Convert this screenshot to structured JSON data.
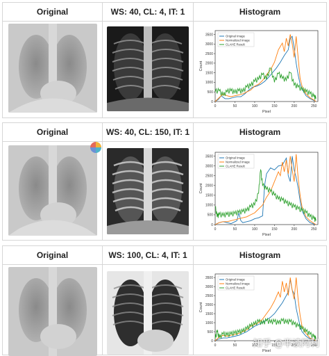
{
  "rows": [
    {
      "col_original": "Original",
      "col_result": "WS: 40, CL: 4, IT: 1",
      "col_hist": "Histogram",
      "chart_data": {
        "type": "line",
        "xlabel": "Pixel",
        "ylabel": "Count",
        "xlim": [
          0,
          260
        ],
        "ylim": [
          0,
          3700
        ],
        "xticks": [
          0,
          50,
          100,
          150,
          200,
          250
        ],
        "yticks": [
          0,
          500,
          1000,
          1500,
          2000,
          2500,
          3000,
          3500
        ],
        "legend_position": "top-left",
        "series": [
          {
            "name": "Original Image",
            "color": "#1f77b4",
            "x": [
              0,
              8,
              15,
              25,
              35,
              45,
              55,
              65,
              75,
              85,
              95,
              105,
              115,
              125,
              135,
              145,
              155,
              165,
              175,
              185,
              190,
              195,
              200,
              205,
              210,
              215,
              220,
              230,
              240,
              250,
              255
            ],
            "y": [
              0,
              100,
              300,
              150,
              150,
              200,
              250,
              250,
              400,
              600,
              750,
              800,
              900,
              1050,
              1250,
              1500,
              1750,
              2050,
              2400,
              2700,
              3300,
              3400,
              2800,
              2000,
              1400,
              900,
              650,
              300,
              150,
              50,
              0
            ]
          },
          {
            "name": "Normalized Image",
            "color": "#ff7f0e",
            "x": [
              0,
              10,
              20,
              30,
              40,
              50,
              60,
              70,
              80,
              90,
              100,
              110,
              120,
              130,
              140,
              150,
              160,
              170,
              175,
              180,
              185,
              190,
              195,
              200,
              205,
              210,
              215,
              220,
              230,
              240,
              250,
              255
            ],
            "y": [
              0,
              200,
              400,
              300,
              250,
              300,
              350,
              400,
              500,
              600,
              800,
              900,
              1100,
              1400,
              1650,
              2050,
              2700,
              3050,
              2600,
              3300,
              2900,
              3500,
              3000,
              2300,
              3400,
              2300,
              1200,
              800,
              400,
              200,
              80,
              0
            ]
          },
          {
            "name": "CLAHE Result",
            "color": "#2ca02c",
            "x": [
              0,
              10,
              20,
              30,
              40,
              50,
              60,
              70,
              80,
              90,
              100,
              110,
              120,
              130,
              140,
              150,
              160,
              170,
              180,
              190,
              200,
              210,
              220,
              230,
              240,
              250,
              255
            ],
            "y": [
              500,
              550,
              300,
              500,
              550,
              450,
              550,
              500,
              750,
              800,
              1050,
              1150,
              1400,
              1150,
              1750,
              1000,
              1450,
              1200,
              1100,
              1500,
              850,
              750,
              600,
              500,
              400,
              250,
              150
            ]
          }
        ]
      }
    },
    {
      "col_original": "Original",
      "col_result": "WS: 40, CL: 150, IT: 1",
      "col_hist": "Histogram",
      "chart_data": {
        "type": "line",
        "xlabel": "Pixel",
        "ylabel": "Count",
        "xlim": [
          0,
          260
        ],
        "ylim": [
          0,
          3700
        ],
        "xticks": [
          0,
          50,
          100,
          150,
          200,
          250
        ],
        "yticks": [
          0,
          500,
          1000,
          1500,
          2000,
          2500,
          3000,
          3500
        ],
        "legend_position": "top-left",
        "series": [
          {
            "name": "Original Image",
            "color": "#1f77b4",
            "x": [
              0,
              10,
              20,
              30,
              40,
              50,
              55,
              60,
              65,
              70,
              80,
              90,
              100,
              110,
              120,
              125,
              130,
              140,
              150,
              160,
              170,
              180,
              185,
              190,
              195,
              200,
              205,
              210,
              215,
              220,
              230,
              240,
              250,
              255
            ],
            "y": [
              0,
              100,
              150,
              100,
              50,
              150,
              200,
              600,
              200,
              100,
              150,
              200,
              300,
              350,
              450,
              2000,
              2600,
              2900,
              2800,
              3000,
              3050,
              3400,
              2500,
              2200,
              3500,
              2800,
              2400,
              1900,
              1200,
              700,
              300,
              100,
              30,
              0
            ]
          },
          {
            "name": "Normalized Image",
            "color": "#ff7f0e",
            "x": [
              0,
              10,
              20,
              30,
              40,
              50,
              60,
              70,
              80,
              90,
              100,
              110,
              120,
              130,
              140,
              150,
              160,
              165,
              170,
              175,
              180,
              185,
              190,
              195,
              200,
              205,
              210,
              215,
              220,
              230,
              240,
              250,
              255
            ],
            "y": [
              0,
              100,
              150,
              150,
              200,
              250,
              300,
              350,
              400,
              500,
              600,
              800,
              1000,
              1400,
              1700,
              2200,
              2700,
              2500,
              3200,
              2700,
              3300,
              2600,
              3500,
              2800,
              2200,
              3600,
              2400,
              1500,
              900,
              400,
              200,
              60,
              0
            ]
          },
          {
            "name": "CLAHE Result",
            "color": "#2ca02c",
            "x": [
              0,
              5,
              10,
              20,
              30,
              40,
              50,
              60,
              70,
              80,
              90,
              100,
              110,
              115,
              120,
              130,
              140,
              150,
              160,
              170,
              180,
              190,
              200,
              210,
              220,
              230,
              240,
              250,
              255
            ],
            "y": [
              900,
              400,
              500,
              450,
              500,
              500,
              550,
              600,
              650,
              700,
              900,
              1000,
              1600,
              2800,
              2000,
              1800,
              1700,
              1500,
              1300,
              1250,
              1100,
              1000,
              900,
              800,
              700,
              600,
              400,
              300,
              200
            ]
          }
        ]
      }
    },
    {
      "col_original": "Original",
      "col_result": "WS: 100, CL: 4, IT: 1",
      "col_hist": "Histogram",
      "chart_data": {
        "type": "line",
        "xlabel": "Pixel",
        "ylabel": "Count",
        "xlim": [
          0,
          260
        ],
        "ylim": [
          0,
          3700
        ],
        "xticks": [
          0,
          50,
          100,
          150,
          200,
          250
        ],
        "yticks": [
          0,
          500,
          1000,
          1500,
          2000,
          2500,
          3000,
          3500
        ],
        "legend_position": "top-left",
        "series": [
          {
            "name": "Original Image",
            "color": "#1f77b4",
            "x": [
              0,
              10,
              20,
              30,
              40,
              50,
              60,
              70,
              80,
              90,
              100,
              110,
              120,
              130,
              140,
              150,
              160,
              170,
              180,
              185,
              190,
              195,
              200,
              205,
              210,
              215,
              220,
              230,
              240,
              250,
              255
            ],
            "y": [
              0,
              100,
              150,
              150,
              200,
              250,
              300,
              400,
              500,
              650,
              800,
              900,
              1000,
              1150,
              1300,
              1500,
              1800,
              2100,
              2500,
              2700,
              3400,
              2800,
              2600,
              1800,
              1300,
              800,
              500,
              250,
              100,
              30,
              0
            ]
          },
          {
            "name": "Normalized Image",
            "color": "#ff7f0e",
            "x": [
              0,
              10,
              20,
              30,
              40,
              50,
              60,
              70,
              80,
              90,
              100,
              110,
              120,
              130,
              140,
              150,
              160,
              165,
              170,
              175,
              180,
              185,
              190,
              195,
              200,
              205,
              210,
              215,
              220,
              230,
              240,
              250,
              255
            ],
            "y": [
              0,
              200,
              300,
              250,
              300,
              350,
              400,
              500,
              600,
              800,
              900,
              1000,
              1200,
              1500,
              1800,
              2200,
              2700,
              2400,
              3300,
              2700,
              3200,
              2500,
              3500,
              2800,
              2300,
              3500,
              2300,
              1400,
              800,
              400,
              150,
              50,
              0
            ]
          },
          {
            "name": "CLAHE Result",
            "color": "#2ca02c",
            "x": [
              0,
              5,
              10,
              20,
              30,
              40,
              50,
              60,
              70,
              80,
              90,
              100,
              110,
              120,
              130,
              140,
              150,
              160,
              170,
              180,
              190,
              200,
              210,
              220,
              230,
              240,
              250,
              255
            ],
            "y": [
              100,
              500,
              150,
              350,
              300,
              350,
              400,
              450,
              500,
              650,
              800,
              900,
              1050,
              950,
              1100,
              1000,
              1050,
              950,
              1100,
              1000,
              1050,
              900,
              800,
              650,
              500,
              350,
              200,
              100
            ]
          }
        ]
      }
    }
  ],
  "watermark": {
    "text": "知乎 @半读阿利",
    "subtext": "CSDN @2021"
  }
}
